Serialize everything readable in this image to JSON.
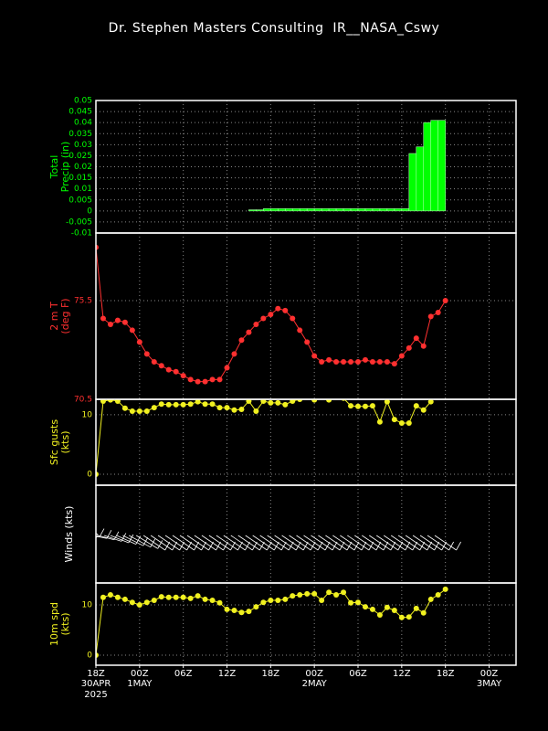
{
  "title": "Dr. Stephen Masters Consulting  IR__NASA_Cswy",
  "x_axis": {
    "xlim": [
      0,
      57.7
    ],
    "xticks": [
      {
        "value": 0,
        "label": "18Z"
      },
      {
        "value": 6,
        "label": "00Z"
      },
      {
        "value": 12,
        "label": "06Z"
      },
      {
        "value": 18,
        "label": "12Z"
      },
      {
        "value": 24,
        "label": "18Z"
      },
      {
        "value": 30,
        "label": "00Z"
      },
      {
        "value": 36,
        "label": "06Z"
      },
      {
        "value": 42,
        "label": "12Z"
      },
      {
        "value": 48,
        "label": "18Z"
      },
      {
        "value": 54,
        "label": "00Z"
      }
    ],
    "date_labels": [
      {
        "value": 0,
        "label": "30APR"
      },
      {
        "value": 6,
        "label": "1MAY"
      },
      {
        "value": 30,
        "label": "2MAY"
      },
      {
        "value": 54,
        "label": "3MAY"
      }
    ],
    "year_label": "2025"
  },
  "chart_data": [
    {
      "type": "bar",
      "ylabel": [
        "Total",
        "Precip (in)"
      ],
      "color": "#00ff00",
      "grid": true,
      "ylim": [
        -0.01,
        0.05
      ],
      "yticks": [
        -0.01,
        -0.005,
        0,
        0.005,
        0.01,
        0.015,
        0.02,
        0.025,
        0.03,
        0.035,
        0.04,
        0.045,
        0.05
      ],
      "x": [
        0,
        1,
        2,
        3,
        4,
        5,
        6,
        7,
        8,
        9,
        10,
        11,
        12,
        13,
        14,
        15,
        16,
        17,
        18,
        19,
        20,
        21,
        22,
        23,
        24,
        25,
        26,
        27,
        28,
        29,
        30,
        31,
        32,
        33,
        34,
        35,
        36,
        37,
        38,
        39,
        40,
        41,
        42,
        43,
        44,
        45,
        46,
        47
      ],
      "values": [
        0,
        0,
        0,
        0,
        0,
        0,
        0,
        0,
        0,
        0,
        0,
        0,
        0,
        0,
        0,
        0,
        0,
        0,
        0,
        0,
        0,
        0.0005,
        0.0005,
        0.001,
        0.001,
        0.001,
        0.001,
        0.001,
        0.001,
        0.001,
        0.001,
        0.001,
        0.001,
        0.001,
        0.001,
        0.001,
        0.001,
        0.001,
        0.001,
        0.001,
        0.001,
        0.001,
        0.001,
        0.026,
        0.029,
        0.04,
        0.041,
        0.041
      ]
    },
    {
      "type": "line",
      "ylabel": [
        "2 m T",
        "(deg F)"
      ],
      "color": "#ff3030",
      "grid": true,
      "ylim": [
        70.5,
        78.93
      ],
      "yticks": [
        70.5,
        75.5
      ],
      "x": [
        0,
        1,
        2,
        3,
        4,
        5,
        6,
        7,
        8,
        9,
        10,
        11,
        12,
        13,
        14,
        15,
        16,
        17,
        18,
        19,
        20,
        21,
        22,
        23,
        24,
        25,
        26,
        27,
        28,
        29,
        30,
        31,
        32,
        33,
        34,
        35,
        36,
        37,
        38,
        39,
        40,
        41,
        42,
        43,
        44,
        45,
        46,
        47,
        48
      ],
      "values": [
        78.2,
        74.6,
        74.3,
        74.5,
        74.4,
        74.0,
        73.4,
        72.8,
        72.4,
        72.2,
        72.0,
        71.9,
        71.7,
        71.5,
        71.4,
        71.4,
        71.5,
        71.5,
        72.1,
        72.8,
        73.5,
        73.9,
        74.3,
        74.6,
        74.8,
        75.1,
        75.0,
        74.6,
        74.0,
        73.4,
        72.7,
        72.4,
        72.5,
        72.4,
        72.4,
        72.4,
        72.4,
        72.5,
        72.4,
        72.4,
        72.4,
        72.3,
        72.7,
        73.1,
        73.6,
        73.2,
        74.7,
        74.9,
        75.5
      ]
    },
    {
      "type": "line",
      "ylabel": [
        "Sfc gusts",
        "(kts)"
      ],
      "color": "#f0f020",
      "grid": true,
      "ylim": [
        -1.85,
        12.6
      ],
      "yticks": [
        0,
        10
      ],
      "x": [
        0,
        1,
        2,
        3,
        4,
        5,
        6,
        7,
        8,
        9,
        10,
        11,
        12,
        13,
        14,
        15,
        16,
        17,
        18,
        19,
        20,
        21,
        22,
        23,
        24,
        25,
        26,
        27,
        28,
        29,
        30,
        31,
        32,
        33,
        34,
        35,
        36,
        37,
        38,
        39,
        40,
        41,
        42,
        43,
        44,
        45,
        46
      ],
      "values": [
        0,
        12.3,
        12.5,
        12.3,
        11.1,
        10.6,
        10.6,
        10.6,
        11.2,
        11.8,
        11.7,
        11.7,
        11.7,
        11.8,
        12.2,
        11.8,
        11.8,
        11.2,
        11.2,
        10.8,
        10.9,
        12.3,
        10.6,
        12.3,
        12.0,
        12.0,
        11.7,
        12.3,
        12.6,
        13.0,
        12.5,
        13.0,
        12.5,
        13.0,
        12.8,
        11.5,
        11.4,
        11.4,
        11.5,
        8.8,
        12.2,
        9.2,
        8.6,
        8.6,
        11.5,
        10.8,
        12.2
      ]
    },
    {
      "type": "barbs",
      "ylabel": [
        "Winds (kts)"
      ],
      "color": "#ffffff",
      "grid": true
    },
    {
      "type": "line",
      "ylabel": [
        "10m spd",
        "(kts)"
      ],
      "color": "#f0f020",
      "grid": true,
      "ylim": [
        -2,
        14.36
      ],
      "yticks": [
        0,
        10
      ],
      "x": [
        0,
        1,
        2,
        3,
        4,
        5,
        6,
        7,
        8,
        9,
        10,
        11,
        12,
        13,
        14,
        15,
        16,
        17,
        18,
        19,
        20,
        21,
        22,
        23,
        24,
        25,
        26,
        27,
        28,
        29,
        30,
        31,
        32,
        33,
        34,
        35,
        36,
        37,
        38,
        39,
        40,
        41,
        42,
        43,
        44,
        45,
        46,
        47,
        48
      ],
      "values": [
        0,
        11.5,
        12.0,
        11.5,
        11.1,
        10.5,
        10.0,
        10.5,
        10.9,
        11.6,
        11.5,
        11.5,
        11.5,
        11.3,
        11.8,
        11.1,
        10.9,
        10.4,
        9.1,
        8.9,
        8.5,
        8.7,
        9.6,
        10.5,
        10.9,
        10.9,
        11.1,
        11.8,
        12.0,
        12.2,
        12.2,
        10.9,
        12.5,
        12.0,
        12.5,
        10.4,
        10.5,
        9.6,
        9.1,
        8.0,
        9.5,
        8.9,
        7.5,
        7.6,
        9.3,
        8.4,
        11.1,
        12.0,
        13.1
      ]
    }
  ]
}
